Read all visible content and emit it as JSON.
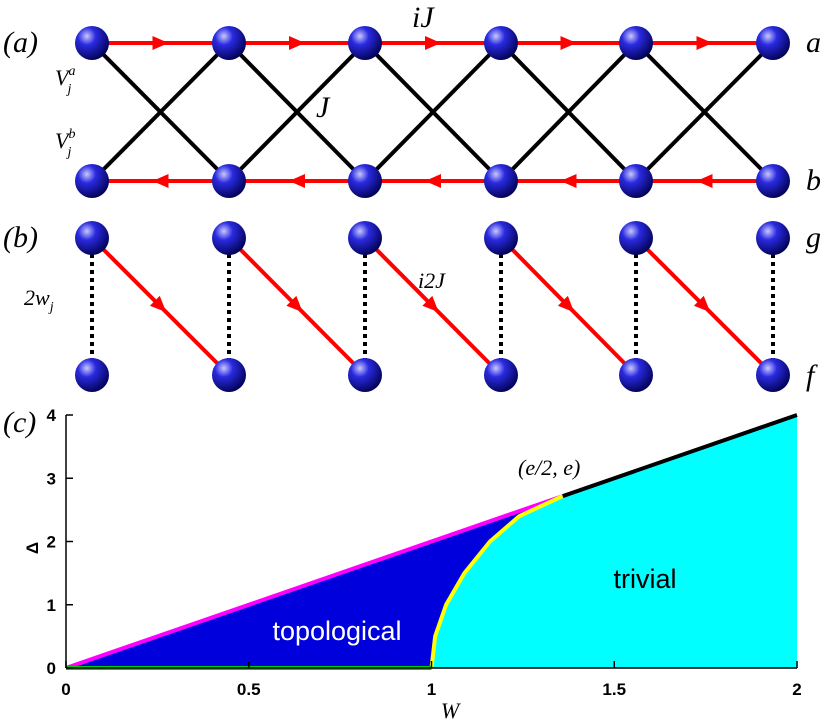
{
  "diagram_a": {
    "label": "(a)",
    "top_hopping": "iJ",
    "cross_hopping": "J",
    "top_site": "a",
    "bottom_site": "b",
    "potential_a": {
      "base": "V",
      "sub": "j",
      "sup": "a"
    },
    "potential_b": {
      "base": "V",
      "sub": "j",
      "sup": "b"
    }
  },
  "diagram_b": {
    "label": "(b)",
    "diagonal_hopping": "i2J",
    "top_site": "g",
    "bottom_site": "f",
    "coupling": {
      "base": "2w",
      "sub": "j"
    }
  },
  "chart_data": {
    "type": "line",
    "panel_label": "(c)",
    "x_label": "W",
    "y_label": "Δ",
    "xlim": [
      0,
      2
    ],
    "ylim": [
      0,
      4
    ],
    "xticks": [
      0,
      0.5,
      1,
      1.5,
      2
    ],
    "yticks": [
      0,
      1,
      2,
      3,
      4
    ],
    "series": [
      {
        "color": "#ff00ff",
        "x": [
          0,
          1.359
        ],
        "values": [
          0,
          2.718
        ]
      },
      {
        "color": "#ffff00",
        "x": [
          1,
          1.01,
          1.04,
          1.09,
          1.16,
          1.24,
          1.359
        ],
        "values": [
          0,
          0.5,
          1,
          1.5,
          2,
          2.4,
          2.718
        ]
      },
      {
        "color": "#000000",
        "x": [
          1.359,
          2
        ],
        "values": [
          2.718,
          4
        ]
      },
      {
        "color": "#00cc00",
        "x": [
          0,
          1
        ],
        "values": [
          0,
          0
        ]
      }
    ],
    "regions": [
      {
        "text": "topological",
        "color": "#0000dd"
      },
      {
        "text": "trivial",
        "color": "#00ffff"
      }
    ],
    "annotation": "(e/2, e)"
  }
}
